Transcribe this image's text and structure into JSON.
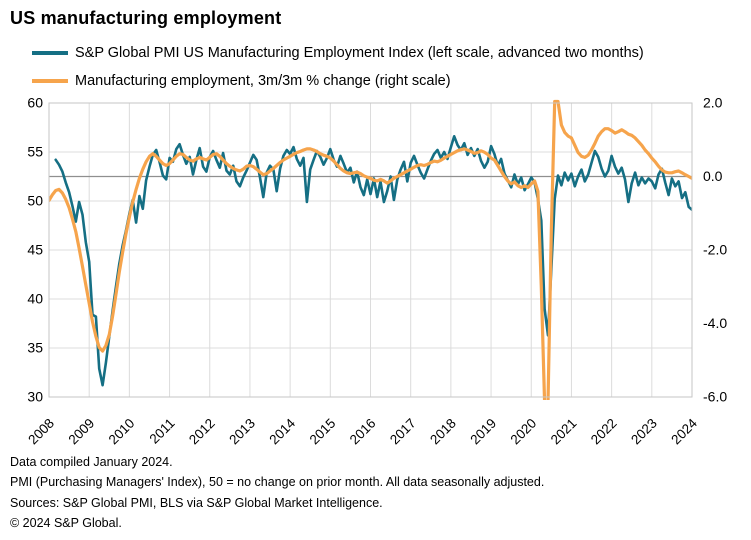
{
  "title": "US manufacturing employment",
  "legend": [
    {
      "label": "S&P Global PMI US Manufacturing Employment Index (left scale, advanced two months)",
      "color": "#156f84"
    },
    {
      "label": "Manufacturing employment, 3m/3m % change (right scale)",
      "color": "#f6a44c"
    }
  ],
  "footnotes": [
    "Data compiled January 2024.",
    "PMI (Purchasing Managers' Index), 50 = no change on prior month. All data seasonally adjusted.",
    "Sources: S&P Global PMI, BLS via S&P Global Market Intelligence.",
    "© 2024 S&P Global."
  ],
  "colors": {
    "pmi_line": "#156f84",
    "employment_line": "#f6a44c",
    "zero_line": "#8f8f8f",
    "gridline": "#dcdcdc",
    "plot_border": "#c6c6c6",
    "text": "#000000"
  },
  "chart_data": {
    "type": "line",
    "title": "US manufacturing employment",
    "x_range": [
      2008,
      2024
    ],
    "x_ticks": [
      "2008",
      "2009",
      "2010",
      "2011",
      "2012",
      "2013",
      "2014",
      "2015",
      "2016",
      "2017",
      "2018",
      "2019",
      "2020",
      "2021",
      "2022",
      "2023",
      "2024"
    ],
    "left_axis": {
      "ticks": [
        60,
        55,
        50,
        45,
        40,
        35,
        30
      ],
      "range": [
        30,
        60
      ]
    },
    "right_axis": {
      "ticks": [
        2.0,
        0.0,
        -2.0,
        -4.0,
        -6.0
      ],
      "range": [
        -6,
        2
      ]
    },
    "zero_line_left_value": 52.5,
    "grid": true,
    "legend_position": "top-left",
    "series": [
      {
        "name": "S&P Global PMI US Manufacturing Employment Index (left scale, advanced two months)",
        "scale": "left",
        "color": "#156f84",
        "start_year": 2008.1667,
        "step_years": 0.0833333,
        "values": [
          54.2,
          53.7,
          53.0,
          51.9,
          50.9,
          49.5,
          47.9,
          49.9,
          48.6,
          45.8,
          43.8,
          38.4,
          38.2,
          32.9,
          31.2,
          33.5,
          36.2,
          38.8,
          41.3,
          43.6,
          45.5,
          47.0,
          48.7,
          50.1,
          47.8,
          50.5,
          49.2,
          52.1,
          53.5,
          54.7,
          55.2,
          54.0,
          52.6,
          52.2,
          54.4,
          54.0,
          55.3,
          55.8,
          54.7,
          53.8,
          54.5,
          52.7,
          54.2,
          55.4,
          53.5,
          53.0,
          54.5,
          55.1,
          54.2,
          53.4,
          54.9,
          53.1,
          52.7,
          53.6,
          52.0,
          51.5,
          52.4,
          53.1,
          53.9,
          54.7,
          54.2,
          52.4,
          50.4,
          52.9,
          53.6,
          53.2,
          51.0,
          53.3,
          54.6,
          55.2,
          54.8,
          55.5,
          54.3,
          53.6,
          54.4,
          49.9,
          53.2,
          54.2,
          55.1,
          54.5,
          53.7,
          54.4,
          55.3,
          54.2,
          53.5,
          54.6,
          53.8,
          52.9,
          53.4,
          51.9,
          53.0,
          51.4,
          50.6,
          52.2,
          50.7,
          52.3,
          50.4,
          52.0,
          49.9,
          51.0,
          52.5,
          50.1,
          52.2,
          53.2,
          54.0,
          52.0,
          53.9,
          54.6,
          53.7,
          52.9,
          52.3,
          53.2,
          54.1,
          54.8,
          55.2,
          54.4,
          55.0,
          54.3,
          55.5,
          56.6,
          55.7,
          55.2,
          55.9,
          54.7,
          55.4,
          54.6,
          55.3,
          54.1,
          53.4,
          54.0,
          55.6,
          54.8,
          53.6,
          54.3,
          52.8,
          52.1,
          51.4,
          52.7,
          51.7,
          52.4,
          51.1,
          51.7,
          52.4,
          51.9,
          50.2,
          48.0,
          39.0,
          36.3,
          43.0,
          50.2,
          52.6,
          51.6,
          52.9,
          52.1,
          52.8,
          51.5,
          52.5,
          53.2,
          52.0,
          52.7,
          53.9,
          55.1,
          54.5,
          53.3,
          52.5,
          53.1,
          54.6,
          53.5,
          52.8,
          53.4,
          52.2,
          49.9,
          51.8,
          52.9,
          51.6,
          52.4,
          51.8,
          52.3,
          52.0,
          51.3,
          52.7,
          53.3,
          51.9,
          50.6,
          52.3,
          51.5,
          52.0,
          50.3,
          50.9,
          49.4,
          49.1
        ]
      },
      {
        "name": "Manufacturing employment, 3m/3m % change (right scale)",
        "scale": "right",
        "color": "#f6a44c",
        "start_year": 2008.0,
        "step_years": 0.0833333,
        "values": [
          -0.65,
          -0.5,
          -0.38,
          -0.35,
          -0.45,
          -0.62,
          -0.85,
          -1.15,
          -1.5,
          -1.95,
          -2.45,
          -2.95,
          -3.45,
          -3.95,
          -4.35,
          -4.65,
          -4.75,
          -4.6,
          -4.3,
          -3.8,
          -3.2,
          -2.6,
          -2.05,
          -1.55,
          -1.1,
          -0.7,
          -0.35,
          -0.05,
          0.2,
          0.4,
          0.55,
          0.62,
          0.55,
          0.45,
          0.35,
          0.3,
          0.35,
          0.45,
          0.55,
          0.62,
          0.6,
          0.52,
          0.45,
          0.42,
          0.48,
          0.52,
          0.48,
          0.45,
          0.52,
          0.6,
          0.62,
          0.55,
          0.45,
          0.35,
          0.28,
          0.22,
          0.18,
          0.15,
          0.2,
          0.28,
          0.3,
          0.27,
          0.2,
          0.12,
          0.05,
          0.08,
          0.15,
          0.22,
          0.3,
          0.38,
          0.45,
          0.5,
          0.55,
          0.6,
          0.65,
          0.68,
          0.72,
          0.75,
          0.75,
          0.72,
          0.68,
          0.62,
          0.58,
          0.55,
          0.5,
          0.42,
          0.32,
          0.22,
          0.15,
          0.1,
          0.08,
          0.1,
          0.12,
          0.08,
          0.02,
          -0.02,
          -0.05,
          -0.1,
          -0.12,
          -0.08,
          -0.12,
          -0.18,
          -0.12,
          -0.05,
          0.0,
          0.05,
          0.1,
          0.15,
          0.2,
          0.25,
          0.3,
          0.32,
          0.3,
          0.33,
          0.38,
          0.42,
          0.4,
          0.44,
          0.5,
          0.55,
          0.6,
          0.65,
          0.7,
          0.73,
          0.75,
          0.72,
          0.68,
          0.63,
          0.65,
          0.7,
          0.66,
          0.6,
          0.5,
          0.45,
          0.3,
          0.15,
          0.0,
          -0.12,
          -0.2,
          -0.15,
          -0.25,
          -0.3,
          -0.25,
          -0.3,
          -0.2,
          -0.12,
          -0.4,
          -3.0,
          -7.5,
          -7.0,
          -1.5,
          2.6,
          2.8,
          1.4,
          1.2,
          1.1,
          1.05,
          0.85,
          0.65,
          0.55,
          0.52,
          0.58,
          0.72,
          0.9,
          1.1,
          1.22,
          1.3,
          1.3,
          1.25,
          1.18,
          1.22,
          1.27,
          1.22,
          1.15,
          1.12,
          1.05,
          0.95,
          0.85,
          0.72,
          0.62,
          0.5,
          0.4,
          0.28,
          0.18,
          0.12,
          0.1,
          0.1,
          0.13,
          0.15,
          0.1,
          0.05,
          0.0,
          -0.05
        ]
      }
    ]
  }
}
